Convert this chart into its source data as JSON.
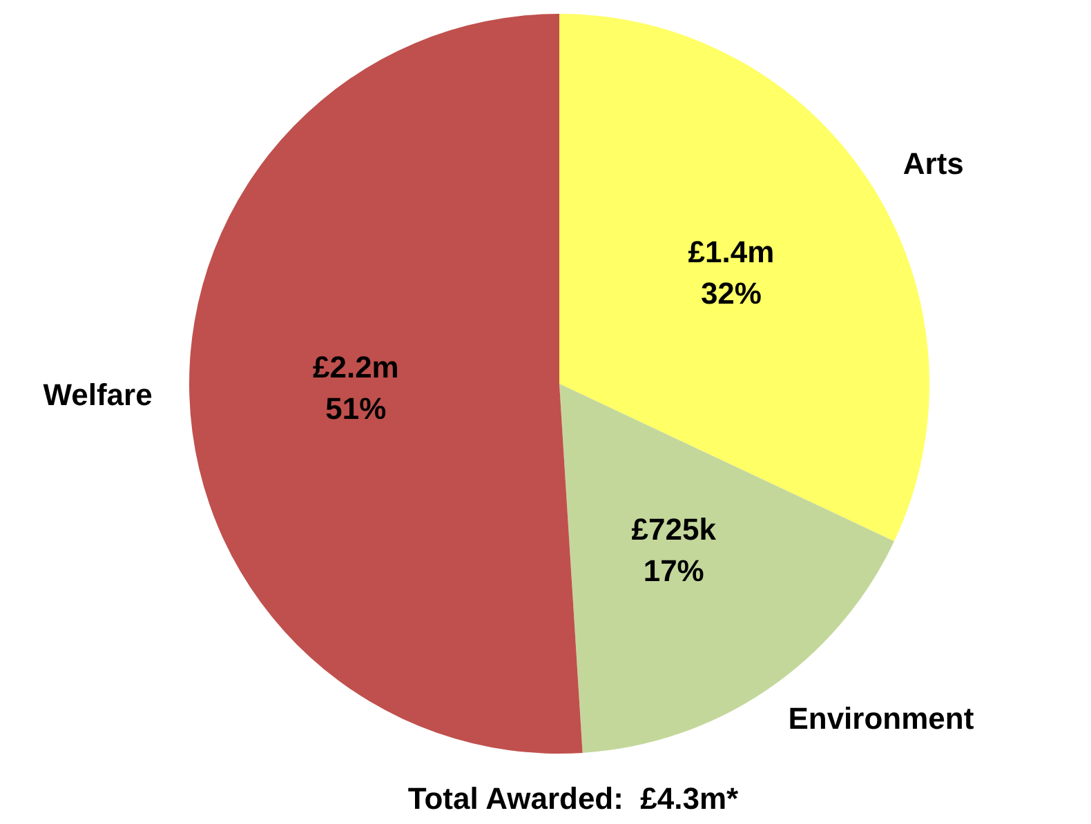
{
  "chart_data": {
    "type": "pie",
    "categories": [
      "Arts",
      "Environment",
      "Welfare"
    ],
    "values": [
      32,
      17,
      51
    ],
    "colors": [
      "#ffff66",
      "#c4d79b",
      "#c0504d"
    ],
    "value_labels": [
      "£1.4m\n32%",
      "£725k\n17%",
      "£2.2m\n51%"
    ],
    "annotations": [
      "Total Awarded:  £4.3m*"
    ],
    "legend": false
  }
}
